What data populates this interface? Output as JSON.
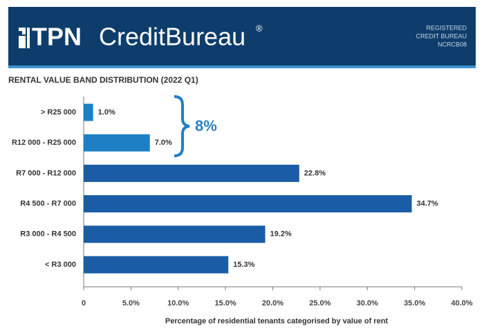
{
  "header": {
    "logo_tpn": "TPN",
    "logo_credit": "CreditBureau",
    "registered_mark": "®",
    "badge": [
      "REGISTERED",
      "CREDIT BUREAU",
      "NCRCB08"
    ]
  },
  "chart_data": {
    "type": "bar",
    "orientation": "horizontal",
    "title": "RENTAL VALUE BAND DISTRIBUTION (2022 Q1)",
    "x_label": "Percentage of residential tenants categorised by value of rent",
    "categories": [
      "> R25 000",
      "R12 000 - R25 000",
      "R7 000 - R12 000",
      "R4 500 - R7 000",
      "R3 000 - R4 500",
      "< R3 000"
    ],
    "values": [
      1.0,
      7.0,
      22.8,
      34.7,
      19.2,
      15.3
    ],
    "value_labels": [
      "1.0%",
      "7.0%",
      "22.8%",
      "34.7%",
      "19.2%",
      "15.3%"
    ],
    "colors": [
      "#1f7fc4",
      "#1f7fc4",
      "#1a5da6",
      "#1a5da6",
      "#1a5da6",
      "#1a5da6"
    ],
    "annotation": "8%",
    "xlim": [
      0,
      40
    ],
    "xticks": [
      0,
      {
        "value": 5,
        "label": "5.0%"
      },
      {
        "value": 10,
        "label": "10.0%"
      },
      {
        "value": 15,
        "label": "15.0%"
      },
      {
        "value": 20,
        "label": "20.0%"
      },
      {
        "value": 25,
        "label": "25.0%"
      },
      {
        "value": 30,
        "label": "30.0%"
      },
      {
        "value": 35,
        "label": "35.0%"
      },
      {
        "value": 40,
        "label": "40.0%"
      }
    ],
    "grid": false
  }
}
